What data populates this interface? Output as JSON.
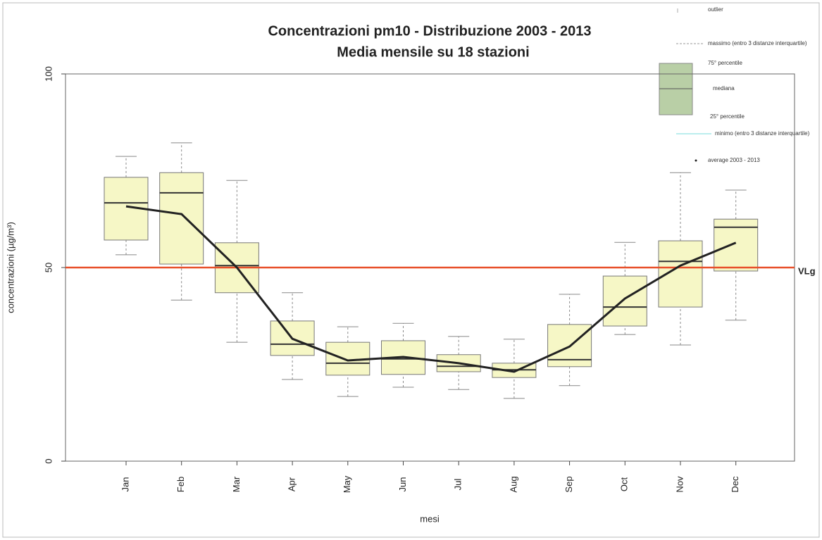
{
  "chart_data": {
    "type": "box",
    "title": "Concentrazioni  pm10  - Distribuzione 2003 - 2013",
    "subtitle": "Media mensile su 18  stazioni",
    "x_label": "mesi",
    "y_label": "concentrazioni (µg/m³)",
    "categories": [
      "Jan",
      "Feb",
      "Mar",
      "Apr",
      "May",
      "Jun",
      "Jul",
      "Aug",
      "Sep",
      "Oct",
      "Nov",
      "Dec"
    ],
    "boxes": [
      {
        "whislo": 53.3,
        "q1": 57.1,
        "med": 66.7,
        "q3": 73.3,
        "whishi": 78.7
      },
      {
        "whislo": 41.6,
        "q1": 50.9,
        "med": 69.3,
        "q3": 74.5,
        "whishi": 82.2
      },
      {
        "whislo": 30.7,
        "q1": 43.5,
        "med": 50.5,
        "q3": 56.4,
        "whishi": 72.5
      },
      {
        "whislo": 21.1,
        "q1": 27.3,
        "med": 30.2,
        "q3": 36.2,
        "whishi": 43.5
      },
      {
        "whislo": 16.7,
        "q1": 22.2,
        "med": 25.3,
        "q3": 30.7,
        "whishi": 34.7
      },
      {
        "whislo": 19.1,
        "q1": 22.4,
        "med": 26.4,
        "q3": 31.1,
        "whishi": 35.6
      },
      {
        "whislo": 18.5,
        "q1": 23.1,
        "med": 24.5,
        "q3": 27.5,
        "whishi": 32.2
      },
      {
        "whislo": 16.2,
        "q1": 21.6,
        "med": 23.6,
        "q3": 25.3,
        "whishi": 31.5
      },
      {
        "whislo": 19.5,
        "q1": 24.4,
        "med": 26.2,
        "q3": 35.3,
        "whishi": 43.1
      },
      {
        "whislo": 32.7,
        "q1": 34.9,
        "med": 39.8,
        "q3": 47.8,
        "whishi": 56.5
      },
      {
        "whislo": 30.0,
        "q1": 39.8,
        "med": 51.6,
        "q3": 56.9,
        "whishi": 74.5
      },
      {
        "whislo": 36.4,
        "q1": 49.1,
        "med": 60.4,
        "q3": 62.5,
        "whishi": 70.0
      }
    ],
    "box_color": "#f6f7c6",
    "mean": {
      "name": "average 2003 - 2013",
      "color": "#222222",
      "values": [
        65.8,
        63.8,
        50.0,
        31.6,
        26.0,
        26.9,
        25.3,
        23.1,
        29.6,
        42.0,
        50.5,
        56.4
      ]
    },
    "reference_line": {
      "value": 50,
      "label": "VLg",
      "color": "#e8502a"
    },
    "ylim": [
      0,
      100
    ],
    "yticks": [
      0,
      50,
      100
    ],
    "legend": [
      "outlier",
      "massimo (entro 3 distanze interquartile)",
      "75° percentile",
      "mediana",
      "25° percentile",
      "minimo (entro 3 distanze interquartile)"
    ]
  }
}
